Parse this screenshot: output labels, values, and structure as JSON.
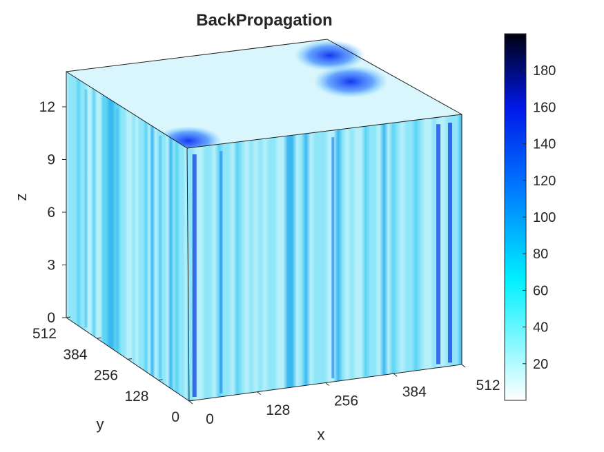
{
  "chart_data": {
    "type": "heatmap",
    "title": "BackPropagation",
    "xlabel": "x",
    "ylabel": "y",
    "zlabel": "z",
    "xlim": [
      0,
      512
    ],
    "ylim": [
      0,
      512
    ],
    "zlim": [
      0,
      14
    ],
    "x_ticks": [
      "0",
      "128",
      "256",
      "384",
      "512"
    ],
    "y_ticks": [
      "0",
      "128",
      "256",
      "384",
      "512"
    ],
    "z_ticks": [
      "0",
      "3",
      "6",
      "9",
      "12"
    ],
    "colorbar": {
      "range": [
        0,
        200
      ],
      "ticks": [
        "20",
        "40",
        "60",
        "80",
        "100",
        "120",
        "140",
        "160",
        "180"
      ],
      "colormap": [
        "#ffffff",
        "#00f5ff",
        "#0070ff",
        "#0010e0",
        "#000010"
      ]
    },
    "dark_streaks_front_x": [
      10,
      60,
      270,
      468,
      490
    ],
    "dark_streaks_left_y": [
      120,
      300,
      430
    ],
    "hot_spots_top": [
      {
        "x": 430,
        "y": 260,
        "intensity": 130
      },
      {
        "x": 470,
        "y": 420,
        "intensity": 120
      },
      {
        "x": 20,
        "y": 40,
        "intensity": 110
      }
    ],
    "grid": false
  }
}
